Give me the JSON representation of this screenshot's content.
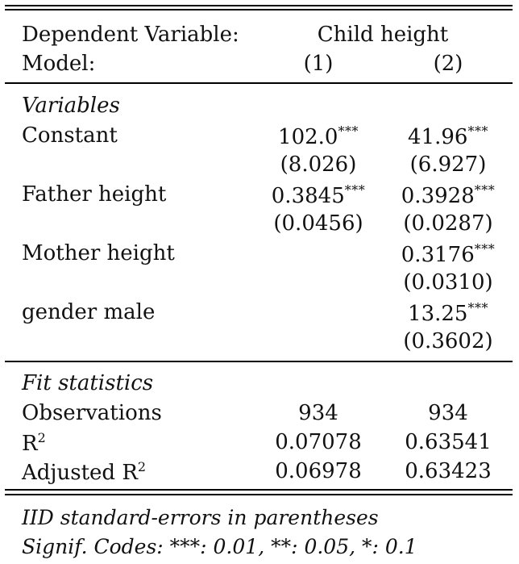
{
  "header": {
    "dep_var_label": "Dependent Variable:",
    "dep_var_value": "Child height",
    "model_label": "Model:",
    "models": [
      "(1)",
      "(2)"
    ]
  },
  "sections": {
    "variables_title": "Variables",
    "fit_title": "Fit statistics"
  },
  "variables": [
    {
      "name": "Constant",
      "m1": {
        "est": "102.0",
        "stars": "***",
        "se": "(8.026)"
      },
      "m2": {
        "est": "41.96",
        "stars": "***",
        "se": "(6.927)"
      }
    },
    {
      "name": "Father height",
      "m1": {
        "est": "0.3845",
        "stars": "***",
        "se": "(0.0456)"
      },
      "m2": {
        "est": "0.3928",
        "stars": "***",
        "se": "(0.0287)"
      }
    },
    {
      "name": "Mother height",
      "m2": {
        "est": "0.3176",
        "stars": "***",
        "se": "(0.0310)"
      }
    },
    {
      "name": "gender male",
      "m2": {
        "est": "13.25",
        "stars": "***",
        "se": "(0.3602)"
      }
    }
  ],
  "fit": [
    {
      "name": "Observations",
      "m1": "934",
      "m2": "934"
    },
    {
      "name": "R",
      "sup": "2",
      "m1": "0.07078",
      "m2": "0.63541"
    },
    {
      "name": "Adjusted R",
      "sup": "2",
      "m1": "0.06978",
      "m2": "0.63423"
    }
  ],
  "notes": {
    "line1": "IID standard-errors in parentheses",
    "line2": "Signif. Codes: ***: 0.01, **: 0.05, *: 0.1"
  }
}
